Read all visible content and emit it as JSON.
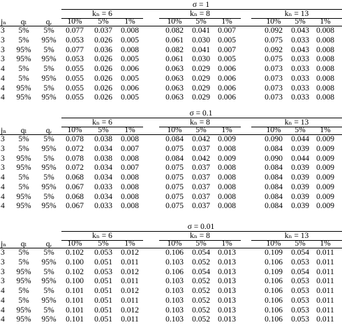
{
  "panels": [
    {
      "title": "σ = 1",
      "groups": [
        "kₙ = 6",
        "kₙ = 8",
        "kₙ = 13"
      ],
      "column_headers": [
        "jₙ",
        "qₗ",
        "qᵣ"
      ],
      "subheaders": [
        "10%",
        "5%",
        "1%",
        "10%",
        "5%",
        "1%",
        "10%",
        "5%",
        "1%"
      ],
      "rows": [
        [
          "3",
          "5%",
          "5%",
          "0.077",
          "0.037",
          "0.008",
          "0.082",
          "0.041",
          "0.007",
          "0.092",
          "0.043",
          "0.008"
        ],
        [
          "3",
          "5%",
          "95%",
          "0.053",
          "0.026",
          "0.005",
          "0.061",
          "0.030",
          "0.005",
          "0.075",
          "0.033",
          "0.008"
        ],
        [
          "3",
          "95%",
          "5%",
          "0.077",
          "0.036",
          "0.008",
          "0.082",
          "0.041",
          "0.007",
          "0.092",
          "0.043",
          "0.008"
        ],
        [
          "3",
          "95%",
          "95%",
          "0.053",
          "0.026",
          "0.005",
          "0.061",
          "0.030",
          "0.005",
          "0.075",
          "0.033",
          "0.008"
        ],
        [
          "4",
          "5%",
          "5%",
          "0.055",
          "0.026",
          "0.006",
          "0.063",
          "0.029",
          "0.006",
          "0.073",
          "0.033",
          "0.008"
        ],
        [
          "4",
          "5%",
          "95%",
          "0.055",
          "0.026",
          "0.005",
          "0.063",
          "0.029",
          "0.006",
          "0.073",
          "0.033",
          "0.008"
        ],
        [
          "4",
          "95%",
          "5%",
          "0.055",
          "0.026",
          "0.006",
          "0.063",
          "0.029",
          "0.006",
          "0.073",
          "0.033",
          "0.008"
        ],
        [
          "4",
          "95%",
          "95%",
          "0.055",
          "0.026",
          "0.005",
          "0.063",
          "0.029",
          "0.006",
          "0.073",
          "0.033",
          "0.008"
        ]
      ]
    },
    {
      "title": "σ = 0.1",
      "groups": [
        "kₙ = 6",
        "kₙ = 8",
        "kₙ = 13"
      ],
      "column_headers": [
        "jₙ",
        "qₗ",
        "qᵣ"
      ],
      "subheaders": [
        "10%",
        "5%",
        "1%",
        "10%",
        "5%",
        "1%",
        "10%",
        "5%",
        "1%"
      ],
      "rows": [
        [
          "3",
          "5%",
          "5%",
          "0.078",
          "0.038",
          "0.008",
          "0.084",
          "0.042",
          "0.009",
          "0.090",
          "0.044",
          "0.009"
        ],
        [
          "3",
          "5%",
          "95%",
          "0.072",
          "0.034",
          "0.007",
          "0.075",
          "0.037",
          "0.008",
          "0.084",
          "0.039",
          "0.009"
        ],
        [
          "3",
          "95%",
          "5%",
          "0.078",
          "0.038",
          "0.008",
          "0.084",
          "0.042",
          "0.009",
          "0.090",
          "0.044",
          "0.009"
        ],
        [
          "3",
          "95%",
          "95%",
          "0.072",
          "0.034",
          "0.007",
          "0.075",
          "0.037",
          "0.008",
          "0.084",
          "0.039",
          "0.009"
        ],
        [
          "4",
          "5%",
          "5%",
          "0.068",
          "0.034",
          "0.008",
          "0.075",
          "0.037",
          "0.008",
          "0.084",
          "0.039",
          "0.009"
        ],
        [
          "4",
          "5%",
          "95%",
          "0.067",
          "0.033",
          "0.008",
          "0.075",
          "0.037",
          "0.008",
          "0.084",
          "0.039",
          "0.009"
        ],
        [
          "4",
          "95%",
          "5%",
          "0.068",
          "0.034",
          "0.008",
          "0.075",
          "0.037",
          "0.008",
          "0.084",
          "0.039",
          "0.009"
        ],
        [
          "4",
          "95%",
          "95%",
          "0.067",
          "0.033",
          "0.008",
          "0.075",
          "0.037",
          "0.008",
          "0.084",
          "0.039",
          "0.009"
        ]
      ]
    },
    {
      "title": "σ = 0.01",
      "groups": [
        "kₙ = 6",
        "kₙ = 8",
        "kₙ = 13"
      ],
      "column_headers": [
        "jₙ",
        "qₗ",
        "qᵣ"
      ],
      "subheaders": [
        "10%",
        "5%",
        "1%",
        "10%",
        "5%",
        "1%",
        "10%",
        "5%",
        "1%"
      ],
      "rows": [
        [
          "3",
          "5%",
          "5%",
          "0.102",
          "0.053",
          "0.012",
          "0.106",
          "0.054",
          "0.013",
          "0.109",
          "0.054",
          "0.011"
        ],
        [
          "3",
          "5%",
          "95%",
          "0.100",
          "0.051",
          "0.011",
          "0.103",
          "0.052",
          "0.013",
          "0.106",
          "0.053",
          "0.011"
        ],
        [
          "3",
          "95%",
          "5%",
          "0.102",
          "0.053",
          "0.012",
          "0.106",
          "0.054",
          "0.013",
          "0.109",
          "0.054",
          "0.011"
        ],
        [
          "3",
          "95%",
          "95%",
          "0.100",
          "0.051",
          "0.011",
          "0.103",
          "0.052",
          "0.013",
          "0.106",
          "0.053",
          "0.011"
        ],
        [
          "4",
          "5%",
          "5%",
          "0.101",
          "0.051",
          "0.012",
          "0.103",
          "0.052",
          "0.013",
          "0.106",
          "0.053",
          "0.011"
        ],
        [
          "4",
          "5%",
          "95%",
          "0.101",
          "0.051",
          "0.011",
          "0.103",
          "0.052",
          "0.013",
          "0.106",
          "0.053",
          "0.011"
        ],
        [
          "4",
          "95%",
          "5%",
          "0.101",
          "0.051",
          "0.012",
          "0.103",
          "0.052",
          "0.013",
          "0.106",
          "0.053",
          "0.011"
        ],
        [
          "4",
          "95%",
          "95%",
          "0.101",
          "0.051",
          "0.011",
          "0.103",
          "0.052",
          "0.013",
          "0.106",
          "0.053",
          "0.011"
        ]
      ]
    }
  ]
}
